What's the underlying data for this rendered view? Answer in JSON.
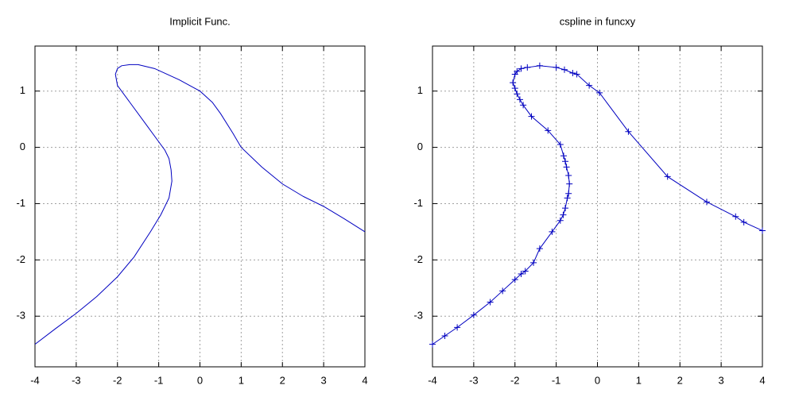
{
  "chart_data": [
    {
      "type": "line",
      "title": "Implicit Func.",
      "x": [
        -4,
        -3.5,
        -3,
        -2.5,
        -2,
        -1.6,
        -1.2,
        -0.95,
        -0.75,
        -0.68,
        -0.7,
        -0.75,
        -0.85,
        -1,
        -1.3,
        -1.7,
        -2,
        -2.05,
        -2,
        -1.9,
        -1.7,
        -1.5,
        -1.1,
        -0.8,
        -0.5,
        -0.2,
        0,
        0.3,
        0.5,
        0.8,
        1,
        1.5,
        2,
        2.5,
        3,
        3.5,
        4
      ],
      "series": [
        {
          "color": "#0000c0",
          "values": [
            -3.5,
            -3.22,
            -2.95,
            -2.65,
            -2.3,
            -1.95,
            -1.5,
            -1.2,
            -0.9,
            -0.6,
            -0.4,
            -0.2,
            -0.05,
            0.1,
            0.4,
            0.8,
            1.1,
            1.3,
            1.4,
            1.45,
            1.47,
            1.47,
            1.4,
            1.3,
            1.2,
            1.08,
            1.0,
            0.8,
            0.6,
            0.25,
            0.0,
            -0.35,
            -0.65,
            -0.87,
            -1.05,
            -1.27,
            -1.5
          ]
        }
      ],
      "xlim": [
        -4,
        4
      ],
      "ylim": [
        -3.9,
        1.8
      ],
      "xticks": [
        -4,
        -3,
        -2,
        -1,
        0,
        1,
        2,
        3,
        4
      ],
      "yticks": [
        -3,
        -2,
        -1,
        0,
        1
      ],
      "grid": true
    },
    {
      "type": "line",
      "title": "cspline in funcxy",
      "x": [
        -4,
        -3.7,
        -3.4,
        -3,
        -2.6,
        -2.3,
        -2,
        -1.85,
        -1.75,
        -1.55,
        -1.4,
        -1.1,
        -0.9,
        -0.83,
        -0.78,
        -0.73,
        -0.7,
        -0.68,
        -0.7,
        -0.75,
        -0.78,
        -0.82,
        -0.9,
        -1.2,
        -1.6,
        -1.8,
        -1.88,
        -1.95,
        -2,
        -2.05,
        -2,
        -1.95,
        -1.85,
        -1.7,
        -1.4,
        -1,
        -0.8,
        -0.6,
        -0.5,
        -0.2,
        0.05,
        0.75,
        1.7,
        2.65,
        3.35,
        3.55,
        4
      ],
      "series": [
        {
          "color": "#0000c0",
          "marker": "plus",
          "values": [
            -3.5,
            -3.35,
            -3.2,
            -2.98,
            -2.75,
            -2.55,
            -2.35,
            -2.25,
            -2.2,
            -2.05,
            -1.8,
            -1.5,
            -1.3,
            -1.2,
            -1.08,
            -0.9,
            -0.82,
            -0.65,
            -0.5,
            -0.35,
            -0.25,
            -0.15,
            0.05,
            0.3,
            0.55,
            0.75,
            0.85,
            0.95,
            1.05,
            1.15,
            1.3,
            1.35,
            1.4,
            1.42,
            1.45,
            1.42,
            1.38,
            1.32,
            1.3,
            1.1,
            0.97,
            0.28,
            -0.52,
            -0.97,
            -1.23,
            -1.33,
            -1.48
          ]
        }
      ],
      "xlim": [
        -4,
        4
      ],
      "ylim": [
        -3.9,
        1.8
      ],
      "xticks": [
        -4,
        -3,
        -2,
        -1,
        0,
        1,
        2,
        3,
        4
      ],
      "yticks": [
        -3,
        -2,
        -1,
        0,
        1
      ],
      "grid": true
    }
  ]
}
